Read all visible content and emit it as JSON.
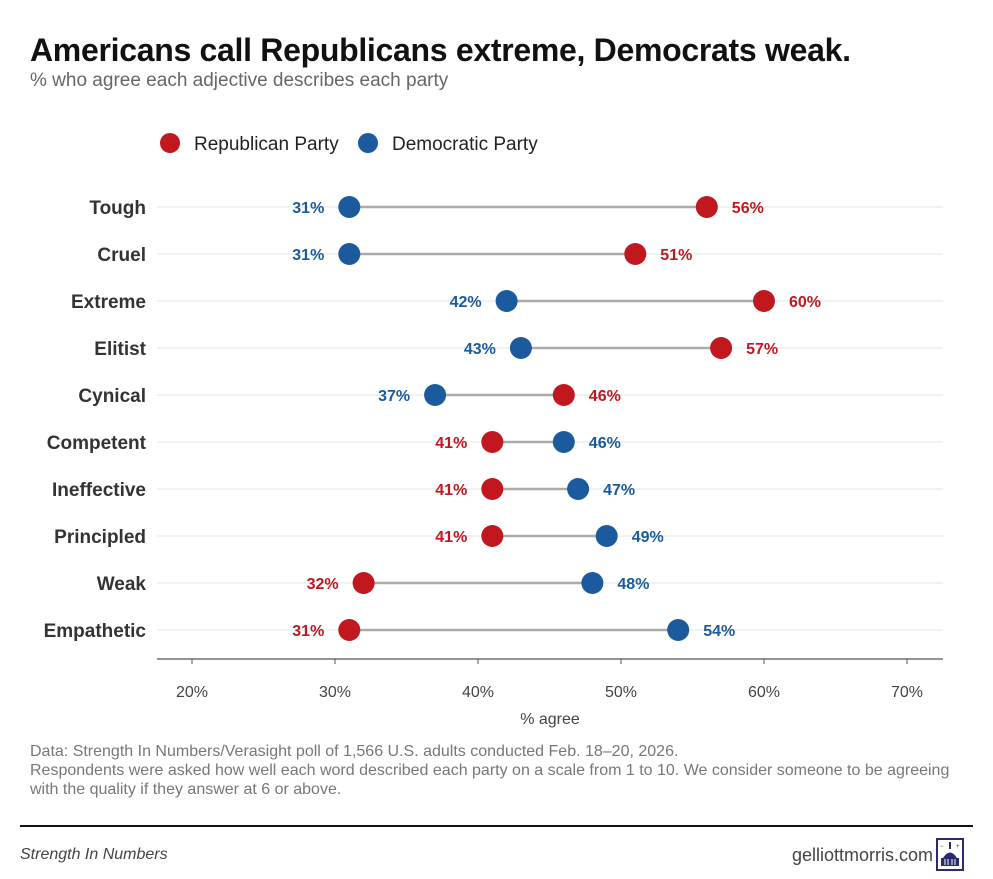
{
  "header": {
    "title": "Americans call Republicans extreme, Democrats weak.",
    "subtitle": "% who agree each adjective describes each party"
  },
  "colors": {
    "republican": "#c1171f",
    "democratic": "#1b5a9c",
    "segment": "#aaaaaa",
    "grid": "#e3e3e3"
  },
  "chart_data": {
    "type": "dumbbell",
    "xlabel": "% agree",
    "xlim": [
      17.5,
      72.5
    ],
    "xticks": [
      20,
      30,
      40,
      50,
      60,
      70
    ],
    "xtick_labels": [
      "20%",
      "30%",
      "40%",
      "50%",
      "60%",
      "70%"
    ],
    "legend_position": "top-left",
    "series": [
      {
        "name": "Republican Party",
        "key": "republican"
      },
      {
        "name": "Democratic Party",
        "key": "democratic"
      }
    ],
    "categories": [
      "Tough",
      "Cruel",
      "Extreme",
      "Elitist",
      "Cynical",
      "Competent",
      "Ineffective",
      "Principled",
      "Weak",
      "Empathetic"
    ],
    "republican": [
      56,
      51,
      60,
      57,
      46,
      41,
      41,
      41,
      32,
      31
    ],
    "democratic": [
      31,
      31,
      42,
      43,
      37,
      46,
      47,
      49,
      48,
      54
    ]
  },
  "footer": {
    "notes": [
      "Data: Strength In Numbers/Verasight poll of 1,566 U.S. adults conducted Feb. 18–20, 2026.",
      "Respondents were asked how well each word described each party on a scale from 1 to 10. We consider someone to be agreeing with the quality if they answer at 6 or above."
    ],
    "source": "Strength In Numbers",
    "site": "gelliottmorris.com",
    "logo_icon": "capitol-logo-icon"
  }
}
